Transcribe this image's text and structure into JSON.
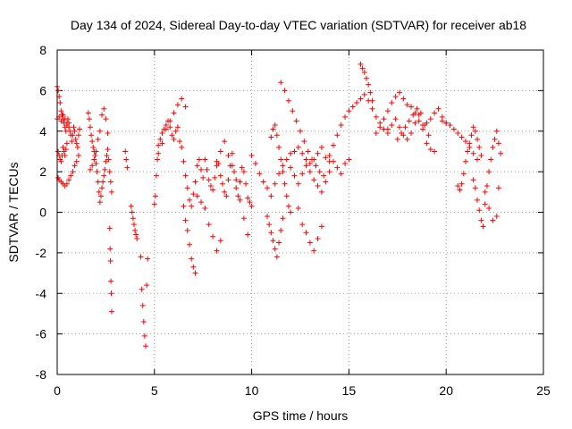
{
  "chart_data": {
    "type": "scatter",
    "title": "Day 134 of 2024, Sidereal Day-to-day VTEC variation (SDTVAR) for receiver ab18",
    "xlabel": "GPS time / hours",
    "ylabel": "SDTVAR / TECUs",
    "xlim": [
      0,
      25
    ],
    "ylim": [
      -8,
      8
    ],
    "xticks": [
      0,
      5,
      10,
      15,
      20,
      25
    ],
    "yticks": [
      -8,
      -6,
      -4,
      -2,
      0,
      2,
      4,
      6,
      8
    ],
    "xtick_labels": [
      "0",
      "5",
      "10",
      "15",
      "20",
      "25"
    ],
    "ytick_labels": [
      "-8",
      "-6",
      "-4",
      "-2",
      "0",
      "2",
      "4",
      "6",
      "8"
    ],
    "grid": true,
    "marker": "+",
    "color": "#ff0000",
    "series": [
      {
        "name": "SDTVAR",
        "x": [
          0.0,
          0.05,
          0.1,
          0.15,
          0.2,
          0.25,
          0.3,
          0.35,
          0.4,
          0.45,
          0.5,
          0.55,
          0.6,
          0.65,
          0.7,
          0.75,
          0.8,
          0.85,
          0.9,
          0.95,
          1.0,
          1.05,
          1.1,
          1.15,
          0.05,
          0.1,
          0.15,
          0.2,
          0.25,
          0.3,
          0.35,
          0.4,
          0.45,
          0.5,
          0.05,
          0.1,
          0.2,
          0.3,
          0.4,
          0.5,
          0.6,
          0.7,
          0.8,
          0.9,
          1.0,
          1.1,
          0.0,
          0.1,
          0.2,
          0.3,
          0.4,
          0.5,
          0.6,
          1.6,
          1.65,
          1.7,
          1.75,
          1.8,
          1.85,
          1.9,
          1.95,
          2.0,
          2.05,
          2.1,
          2.15,
          2.2,
          2.25,
          2.3,
          2.35,
          2.4,
          2.45,
          2.5,
          2.55,
          2.6,
          2.65,
          2.7,
          2.75,
          2.8,
          1.7,
          1.8,
          1.9,
          2.0,
          2.1,
          2.2,
          2.3,
          2.4,
          2.5,
          2.6,
          2.7,
          2.72,
          2.74,
          2.76,
          2.78,
          2.8,
          3.5,
          3.55,
          3.6,
          3.8,
          3.85,
          3.9,
          3.95,
          4.0,
          4.05,
          4.1,
          4.3,
          4.35,
          4.4,
          4.45,
          4.5,
          4.55,
          4.6,
          4.65,
          5.0,
          5.05,
          5.1,
          5.15,
          5.2,
          5.3,
          5.4,
          5.5,
          5.6,
          5.7,
          5.8,
          5.9,
          6.0,
          6.1,
          6.2,
          6.3,
          6.4,
          6.5,
          6.6,
          6.7,
          6.8,
          6.9,
          7.0,
          7.1,
          7.2,
          7.3,
          7.4,
          7.5,
          7.6,
          7.7,
          7.8,
          7.9,
          8.0,
          8.1,
          8.2,
          8.3,
          8.4,
          8.5,
          8.6,
          8.7,
          8.8,
          8.9,
          9.0,
          9.1,
          9.2,
          9.3,
          9.4,
          9.5,
          9.6,
          9.7,
          9.8,
          9.9,
          10.0,
          5.2,
          5.4,
          5.6,
          5.8,
          6.0,
          6.2,
          6.4,
          6.6,
          6.5,
          6.6,
          6.7,
          6.8,
          6.9,
          7.0,
          7.1,
          7.2,
          7.4,
          7.6,
          7.8,
          8.0,
          8.2,
          8.4,
          8.2,
          8.4,
          8.6,
          8.8,
          9.0,
          9.2,
          9.4,
          9.6,
          9.8,
          10.0,
          10.2,
          10.4,
          10.6,
          10.8,
          11.0,
          11.2,
          11.4,
          11.6,
          11.8,
          12.0,
          12.2,
          12.4,
          12.6,
          12.8,
          13.0,
          13.2,
          13.4,
          13.6,
          13.8,
          14.0,
          10.8,
          10.9,
          11.0,
          11.1,
          11.2,
          11.3,
          11.4,
          11.5,
          11.6,
          11.0,
          11.1,
          11.2,
          11.3,
          11.4,
          11.5,
          11.6,
          11.7,
          11.8,
          11.9,
          12.0,
          12.0,
          12.2,
          12.4,
          12.6,
          12.8,
          13.0,
          13.2,
          13.4,
          13.6,
          13.8,
          14.0,
          14.2,
          14.4,
          14.6,
          14.8,
          15.0,
          12.4,
          12.6,
          12.8,
          13.0,
          13.2,
          13.4,
          13.6,
          11.5,
          11.7,
          11.9,
          12.1,
          12.3,
          12.5,
          12.7,
          12.9,
          13.1,
          13.3,
          13.5,
          13.7,
          14.0,
          14.2,
          14.4,
          14.6,
          14.8,
          15.0,
          15.2,
          15.4,
          15.6,
          15.8,
          16.0,
          16.2,
          16.4,
          16.6,
          16.8,
          17.0,
          15.6,
          15.7,
          15.8,
          15.9,
          16.0,
          16.1,
          16.2,
          16.4,
          16.6,
          16.8,
          17.0,
          17.2,
          17.4,
          17.6,
          17.8,
          18.0,
          18.2,
          18.4,
          18.6,
          18.8,
          19.0,
          19.2,
          19.4,
          19.6,
          19.8,
          20.0,
          17.0,
          17.2,
          17.4,
          17.6,
          17.8,
          18.0,
          18.2,
          18.4,
          18.6,
          18.8,
          19.0,
          19.2,
          19.4,
          17.5,
          17.7,
          17.9,
          18.1,
          18.3,
          18.5,
          18.7,
          18.9,
          19.1,
          19.8,
          20.0,
          20.2,
          20.4,
          20.6,
          20.8,
          21.0,
          21.2,
          21.4,
          21.6,
          20.6,
          20.7,
          20.8,
          20.9,
          21.0,
          21.1,
          21.2,
          21.3,
          21.4,
          21.5,
          21.6,
          21.7,
          21.8,
          21.4,
          21.5,
          21.6,
          21.7,
          21.8,
          21.9,
          22.0,
          22.1,
          22.2,
          22.3,
          22.4,
          22.5,
          22.6,
          22.7,
          22.0,
          22.2,
          22.4,
          22.6,
          22.7,
          22.8
        ],
        "y": [
          6.2,
          6.0,
          5.7,
          5.4,
          5.0,
          4.8,
          4.6,
          4.4,
          4.2,
          4.0,
          4.3,
          4.6,
          4.4,
          4.0,
          3.8,
          3.5,
          3.8,
          4.2,
          4.0,
          3.6,
          3.4,
          3.2,
          3.8,
          4.1,
          3.0,
          2.8,
          2.6,
          2.5,
          2.8,
          3.2,
          3.0,
          2.8,
          3.1,
          3.4,
          1.7,
          1.6,
          1.5,
          1.4,
          1.3,
          1.4,
          1.6,
          1.8,
          2.0,
          2.3,
          2.5,
          2.8,
          4.6,
          4.7,
          4.5,
          4.8,
          4.6,
          4.4,
          4.2,
          4.9,
          4.6,
          4.2,
          3.8,
          3.5,
          3.2,
          3.0,
          2.8,
          2.4,
          2.0,
          1.5,
          1.0,
          0.5,
          0.8,
          1.2,
          1.5,
          1.8,
          2.1,
          2.5,
          2.8,
          3.1,
          2.6,
          2.0,
          1.5,
          1.0,
          2.1,
          2.3,
          2.6,
          3.0,
          3.6,
          4.0,
          4.8,
          5.1,
          4.6,
          3.9,
          -0.8,
          -1.8,
          -2.4,
          -3.4,
          -4.0,
          -4.9,
          3.0,
          2.6,
          2.2,
          0.3,
          0.0,
          -0.3,
          -0.6,
          -0.9,
          -1.1,
          -1.3,
          -2.2,
          -3.8,
          -4.6,
          -5.4,
          -6.1,
          -6.6,
          -3.6,
          -2.3,
          0.4,
          0.8,
          1.8,
          2.6,
          3.3,
          3.6,
          3.9,
          4.1,
          4.3,
          4.5,
          4.2,
          3.8,
          3.6,
          4.0,
          4.2,
          3.5,
          3.2,
          2.5,
          1.8,
          1.2,
          0.6,
          0.3,
          0.9,
          1.5,
          2.3,
          2.6,
          2.1,
          1.7,
          2.6,
          2.1,
          1.6,
          1.3,
          1.1,
          1.7,
          2.3,
          2.4,
          1.8,
          1.4,
          1.0,
          0.8,
          1.6,
          2.3,
          2.9,
          2.0,
          1.2,
          0.8,
          1.5,
          2.2,
          2.0,
          1.4,
          0.7,
          0.5,
          0.3,
          2.9,
          3.4,
          4.1,
          4.5,
          4.9,
          5.3,
          5.6,
          5.2,
          0.3,
          -0.4,
          -0.9,
          -1.6,
          -2.3,
          -2.7,
          -3.0,
          0.8,
          0.5,
          0.2,
          -0.6,
          -1.2,
          -1.9,
          -1.4,
          2.5,
          3.0,
          3.5,
          2.8,
          2.3,
          1.6,
          0.6,
          -0.3,
          -1.1,
          2.8,
          2.4,
          1.9,
          1.5,
          1.2,
          0.8,
          1.4,
          1.9,
          2.3,
          2.6,
          2.9,
          3.0,
          3.2,
          2.9,
          2.6,
          2.4,
          2.6,
          2.9,
          3.2,
          2.7,
          2.5,
          -0.2,
          -0.6,
          -1.0,
          -1.4,
          -1.8,
          -2.2,
          -1.5,
          -0.9,
          -0.3,
          3.7,
          4.1,
          4.3,
          3.8,
          3.2,
          2.6,
          2.0,
          1.4,
          0.8,
          0.3,
          0.0,
          2.2,
          1.8,
          1.4,
          1.9,
          2.3,
          2.0,
          1.6,
          1.3,
          1.0,
          1.5,
          2.0,
          2.5,
          2.2,
          1.9,
          2.4,
          2.6,
          0.2,
          -0.6,
          -1.0,
          -1.5,
          -1.9,
          -1.3,
          -0.7,
          6.4,
          6.0,
          5.5,
          5.0,
          4.5,
          4.0,
          3.5,
          3.0,
          2.6,
          2.3,
          2.0,
          1.8,
          2.8,
          3.3,
          3.8,
          4.3,
          4.7,
          5.0,
          5.2,
          5.4,
          5.6,
          5.8,
          5.5,
          5.1,
          4.7,
          4.4,
          4.1,
          3.9,
          7.3,
          7.1,
          6.9,
          6.6,
          6.3,
          5.9,
          5.5,
          3.9,
          4.2,
          4.6,
          5.0,
          5.4,
          5.7,
          5.9,
          5.6,
          5.3,
          5.2,
          4.9,
          4.5,
          4.3,
          4.4,
          4.6,
          4.9,
          5.1,
          4.7,
          4.4,
          4.1,
          4.3,
          4.6,
          4.2,
          3.8,
          3.6,
          3.9,
          4.4,
          4.8,
          4.1,
          3.4,
          3.1,
          3.0,
          3.6,
          3.9,
          4.2,
          4.5,
          4.8,
          5.1,
          4.9,
          4.3,
          3.8,
          4.5,
          4.4,
          4.3,
          4.1,
          3.9,
          3.7,
          3.5,
          3.2,
          2.9,
          2.6,
          1.3,
          1.1,
          1.4,
          1.9,
          2.5,
          3.0,
          3.4,
          3.8,
          4.2,
          4.0,
          3.6,
          3.2,
          2.8,
          1.6,
          1.2,
          0.6,
          0.1,
          -0.4,
          -0.7,
          0.4,
          1.3,
          2.0,
          2.6,
          3.2,
          3.6,
          4.0,
          3.4,
          1.0,
          0.2,
          -0.4,
          -0.2,
          1.2,
          2.9
        ]
      }
    ]
  }
}
